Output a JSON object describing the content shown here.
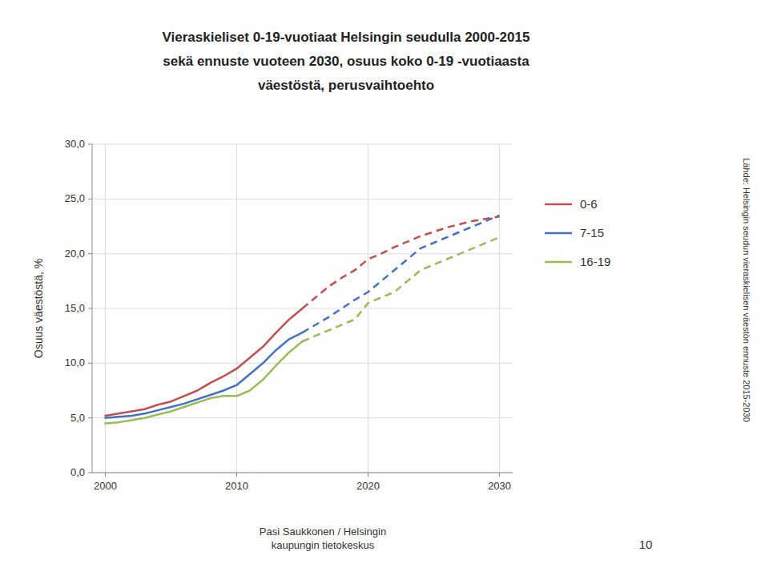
{
  "chart_data": {
    "type": "line",
    "title": "Vieraskieliset 0-19-vuotiaat Helsingin seudulla 2000-2015\nsekä ennuste vuoteen 2030, osuus koko 0-19 -vuotiaasta\nväestöstä, perusvaihtoehto",
    "ylabel": "Osuus väestöstä, %",
    "annotations": [
      "Pasi Saukkonen / Helsingin\nkaupungin tietokeskus",
      "10",
      "Lähde: Helsingin seudun vieraskielisen väestön ennuste 2015-2030"
    ],
    "x": [
      2000,
      2001,
      2002,
      2003,
      2004,
      2005,
      2006,
      2007,
      2008,
      2009,
      2010,
      2011,
      2012,
      2013,
      2014,
      2015,
      2016,
      2017,
      2018,
      2019,
      2020,
      2021,
      2022,
      2023,
      2024,
      2025,
      2026,
      2027,
      2028,
      2029,
      2030
    ],
    "series": [
      {
        "name": "0-6",
        "color": "#c0504d",
        "line_style": "solid",
        "values": [
          5.2,
          5.4,
          5.6,
          5.8,
          6.2,
          6.5,
          7.0,
          7.5,
          8.2,
          8.8,
          9.5,
          10.5,
          11.5,
          12.8,
          14.0,
          15.0,
          null,
          null,
          null,
          null,
          null,
          null,
          null,
          null,
          null,
          null,
          null,
          null,
          null,
          null,
          null
        ]
      },
      {
        "name": "0-6",
        "color": "#c0504d",
        "line_style": "dashed",
        "values": [
          null,
          null,
          null,
          null,
          null,
          null,
          null,
          null,
          null,
          null,
          null,
          null,
          null,
          null,
          null,
          15.0,
          16.0,
          17.0,
          17.8,
          18.5,
          19.5,
          20.0,
          20.6,
          21.1,
          21.6,
          22.0,
          22.4,
          22.7,
          23.0,
          23.2,
          23.4
        ]
      },
      {
        "name": "7-15",
        "color": "#4472c4",
        "line_style": "solid",
        "values": [
          5.0,
          5.1,
          5.2,
          5.4,
          5.7,
          6.0,
          6.3,
          6.7,
          7.1,
          7.5,
          8.0,
          9.0,
          10.0,
          11.2,
          12.2,
          12.8,
          null,
          null,
          null,
          null,
          null,
          null,
          null,
          null,
          null,
          null,
          null,
          null,
          null,
          null,
          null
        ]
      },
      {
        "name": "7-15",
        "color": "#4472c4",
        "line_style": "dashed",
        "values": [
          null,
          null,
          null,
          null,
          null,
          null,
          null,
          null,
          null,
          null,
          null,
          null,
          null,
          null,
          null,
          12.8,
          13.5,
          14.2,
          15.0,
          15.8,
          16.5,
          17.5,
          18.5,
          19.5,
          20.5,
          21.0,
          21.5,
          22.0,
          22.5,
          23.0,
          23.5
        ]
      },
      {
        "name": "16-19",
        "color": "#9bbb59",
        "line_style": "solid",
        "values": [
          4.5,
          4.6,
          4.8,
          5.0,
          5.3,
          5.6,
          6.0,
          6.4,
          6.8,
          7.0,
          7.0,
          7.5,
          8.5,
          9.8,
          11.0,
          12.0,
          null,
          null,
          null,
          null,
          null,
          null,
          null,
          null,
          null,
          null,
          null,
          null,
          null,
          null,
          null
        ]
      },
      {
        "name": "16-19",
        "color": "#9bbb59",
        "line_style": "dashed",
        "values": [
          null,
          null,
          null,
          null,
          null,
          null,
          null,
          null,
          null,
          null,
          null,
          null,
          null,
          null,
          null,
          12.0,
          12.5,
          13.0,
          13.5,
          14.0,
          15.5,
          16.0,
          16.5,
          17.5,
          18.5,
          19.0,
          19.5,
          20.0,
          20.5,
          21.0,
          21.5
        ]
      }
    ],
    "xlim": [
      1999,
      2031
    ],
    "ylim": [
      0,
      30
    ],
    "xticks": [
      2000,
      2010,
      2020,
      2030
    ],
    "yticks": [
      {
        "value": 0.0,
        "label": "0,0"
      },
      {
        "value": 5.0,
        "label": "5,0"
      },
      {
        "value": 10.0,
        "label": "10,0"
      },
      {
        "value": 15.0,
        "label": "15,0"
      },
      {
        "value": 20.0,
        "label": "20,0"
      },
      {
        "value": 25.0,
        "label": "25,0"
      },
      {
        "value": 30.0,
        "label": "30,0"
      }
    ],
    "grid": true,
    "legend": "right"
  }
}
